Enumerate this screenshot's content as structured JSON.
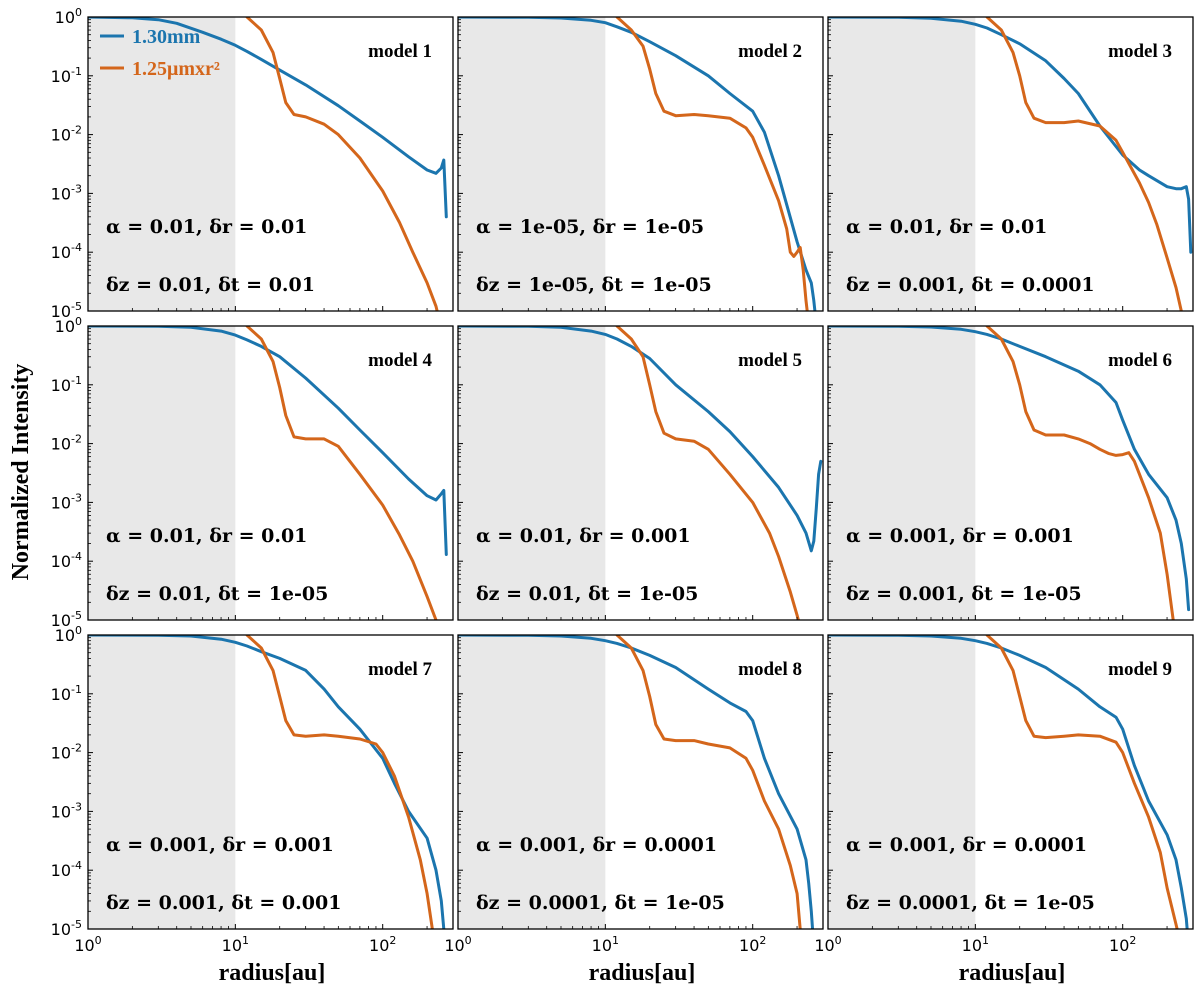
{
  "chart_data": {
    "type": "line",
    "layout": "3x3 grid of panels",
    "ylabel": "Normalized Intensity",
    "xlabel": "radius[au]",
    "xscale": "log",
    "yscale": "log",
    "xlim": [
      1,
      300
    ],
    "ylim": [
      1e-05,
      1
    ],
    "x_ticks": [
      "10^0",
      "10^1",
      "10^2"
    ],
    "y_ticks": [
      "10^0",
      "10^-1",
      "10^-2",
      "10^-3",
      "10^-4",
      "10^-5"
    ],
    "shaded_region": {
      "x_from": 1,
      "x_to": 10,
      "color": "#e8e8e8"
    },
    "legend": [
      {
        "label": "1.30mm",
        "color": "#1b75ae"
      },
      {
        "label": "1.25μmxr²",
        "color": "#d4661b"
      }
    ],
    "colors": {
      "mm": "#1b75ae",
      "um": "#d4661b"
    },
    "panels": [
      {
        "title": "model 1",
        "param_line1": "α = 0.01,  δr = 0.01",
        "param_line2": "δz = 0.01,  δt = 0.01",
        "series": [
          {
            "name": "1.30mm",
            "x": [
              1,
              2,
              3,
              4,
              6,
              8,
              10,
              12,
              15,
              20,
              30,
              50,
              70,
              100,
              150,
              200,
              230,
              250,
              260,
              270
            ],
            "y": [
              1,
              0.97,
              0.9,
              0.78,
              0.55,
              0.42,
              0.33,
              0.26,
              0.19,
              0.125,
              0.07,
              0.031,
              0.017,
              0.009,
              0.0042,
              0.0025,
              0.0022,
              0.0027,
              0.0037,
              0.0004
            ]
          },
          {
            "name": "1.25μmxr²",
            "x": [
              12,
              15,
              18,
              20,
              22,
              25,
              30,
              40,
              50,
              70,
              100,
              130,
              160,
              200,
              230,
              250
            ],
            "y": [
              1,
              0.6,
              0.25,
              0.09,
              0.035,
              0.022,
              0.02,
              0.015,
              0.01,
              0.004,
              0.0011,
              0.00032,
              0.0001,
              3e-05,
              1.2e-05,
              5e-06
            ]
          }
        ]
      },
      {
        "title": "model 2",
        "param_line1": "α = 1e-05,  δr = 1e-05",
        "param_line2": "δz = 1e-05,  δt = 1e-05",
        "series": [
          {
            "name": "1.30mm",
            "x": [
              1,
              3,
              5,
              8,
              10,
              12,
              15,
              20,
              30,
              50,
              70,
              100,
              120,
              150,
              200,
              230,
              250,
              260,
              270
            ],
            "y": [
              1,
              0.99,
              0.96,
              0.88,
              0.8,
              0.68,
              0.55,
              0.38,
              0.22,
              0.1,
              0.05,
              0.025,
              0.011,
              0.002,
              0.00015,
              5e-05,
              3e-05,
              1.5e-05,
              6e-06
            ]
          },
          {
            "name": "1.25μmxr²",
            "x": [
              12,
              15,
              18,
              20,
              22,
              25,
              30,
              40,
              50,
              70,
              90,
              100,
              120,
              150,
              170,
              180,
              190,
              200,
              210,
              220,
              230,
              240
            ],
            "y": [
              1,
              0.6,
              0.32,
              0.13,
              0.05,
              0.025,
              0.021,
              0.022,
              0.021,
              0.019,
              0.013,
              0.009,
              0.003,
              0.00075,
              0.00025,
              0.0001,
              8.5e-05,
              0.0001,
              0.00012,
              5e-05,
              1.5e-05,
              6e-06
            ]
          }
        ]
      },
      {
        "title": "model 3",
        "param_line1": "α = 0.01,  δr = 0.01",
        "param_line2": "δz = 0.001,  δt = 0.0001",
        "series": [
          {
            "name": "1.30mm",
            "x": [
              1,
              3,
              5,
              8,
              10,
              12,
              15,
              20,
              30,
              40,
              50,
              70,
              100,
              130,
              150,
              200,
              230,
              250,
              270,
              280,
              290
            ],
            "y": [
              1,
              0.99,
              0.95,
              0.85,
              0.75,
              0.65,
              0.5,
              0.35,
              0.18,
              0.09,
              0.05,
              0.014,
              0.0045,
              0.0025,
              0.002,
              0.0013,
              0.0012,
              0.0012,
              0.0013,
              0.0008,
              0.0001
            ]
          },
          {
            "name": "1.25μmxr²",
            "x": [
              12,
              15,
              18,
              20,
              22,
              25,
              30,
              40,
              50,
              70,
              90,
              100,
              130,
              150,
              170,
              200,
              230,
              250
            ],
            "y": [
              1,
              0.6,
              0.25,
              0.1,
              0.035,
              0.019,
              0.016,
              0.016,
              0.017,
              0.014,
              0.008,
              0.005,
              0.0015,
              0.0007,
              0.0003,
              8e-05,
              2.5e-05,
              1e-05
            ]
          }
        ]
      },
      {
        "title": "model 4",
        "param_line1": "α = 0.01,  δr = 0.01",
        "param_line2": "δz = 0.01,  δt = 1e-05",
        "series": [
          {
            "name": "1.30mm",
            "x": [
              1,
              3,
              5,
              8,
              10,
              12,
              15,
              20,
              30,
              50,
              70,
              100,
              150,
              200,
              230,
              250,
              260,
              270
            ],
            "y": [
              1,
              0.99,
              0.95,
              0.82,
              0.7,
              0.58,
              0.45,
              0.3,
              0.13,
              0.04,
              0.017,
              0.007,
              0.0025,
              0.0013,
              0.0011,
              0.0014,
              0.0016,
              0.00013
            ]
          },
          {
            "name": "1.25μmxr²",
            "x": [
              12,
              15,
              18,
              20,
              22,
              25,
              30,
              40,
              50,
              70,
              100,
              130,
              160,
              200,
              230,
              250
            ],
            "y": [
              1,
              0.6,
              0.25,
              0.09,
              0.03,
              0.013,
              0.012,
              0.012,
              0.009,
              0.003,
              0.0009,
              0.00028,
              0.0001,
              2.5e-05,
              1e-05,
              5e-06
            ]
          }
        ]
      },
      {
        "title": "model 5",
        "param_line1": "α = 0.01,  δr = 0.001",
        "param_line2": "δz = 0.01,  δt = 1e-05",
        "series": [
          {
            "name": "1.30mm",
            "x": [
              1,
              3,
              5,
              8,
              10,
              12,
              15,
              20,
              30,
              50,
              70,
              100,
              150,
              200,
              230,
              250,
              260,
              270,
              280,
              290
            ],
            "y": [
              1,
              0.99,
              0.95,
              0.82,
              0.72,
              0.6,
              0.45,
              0.28,
              0.1,
              0.035,
              0.016,
              0.006,
              0.0018,
              0.0006,
              0.0003,
              0.00015,
              0.00022,
              0.0008,
              0.003,
              0.005
            ]
          },
          {
            "name": "1.25μmxr²",
            "x": [
              12,
              15,
              18,
              20,
              22,
              25,
              30,
              40,
              50,
              70,
              100,
              130,
              150,
              180,
              200,
              220
            ],
            "y": [
              1,
              0.6,
              0.3,
              0.1,
              0.035,
              0.015,
              0.012,
              0.011,
              0.008,
              0.003,
              0.001,
              0.0003,
              0.00012,
              3e-05,
              1.2e-05,
              5e-06
            ]
          }
        ]
      },
      {
        "title": "model 6",
        "param_line1": "α = 0.001,  δr = 0.001",
        "param_line2": "δz = 0.001,  δt = 1e-05",
        "series": [
          {
            "name": "1.30mm",
            "x": [
              1,
              3,
              5,
              8,
              10,
              12,
              15,
              20,
              30,
              50,
              70,
              90,
              100,
              120,
              150,
              200,
              230,
              250,
              270,
              280
            ],
            "y": [
              1,
              0.99,
              0.96,
              0.88,
              0.8,
              0.72,
              0.6,
              0.45,
              0.3,
              0.17,
              0.1,
              0.05,
              0.025,
              0.008,
              0.003,
              0.0012,
              0.0005,
              0.0002,
              5e-05,
              1.5e-05
            ]
          },
          {
            "name": "1.25μmxr²",
            "x": [
              12,
              15,
              18,
              20,
              22,
              25,
              30,
              40,
              50,
              60,
              70,
              80,
              90,
              100,
              110,
              120,
              130,
              150,
              180,
              200,
              220
            ],
            "y": [
              1,
              0.6,
              0.25,
              0.1,
              0.035,
              0.017,
              0.014,
              0.014,
              0.012,
              0.01,
              0.008,
              0.0068,
              0.0063,
              0.0065,
              0.007,
              0.005,
              0.003,
              0.0012,
              0.0003,
              6e-05,
              1e-05
            ]
          }
        ]
      },
      {
        "title": "model 7",
        "param_line1": "α = 0.001,  δr = 0.001",
        "param_line2": "δz = 0.001,  δt = 0.001",
        "series": [
          {
            "name": "1.30mm",
            "x": [
              1,
              3,
              5,
              8,
              10,
              12,
              15,
              20,
              30,
              40,
              50,
              70,
              100,
              120,
              150,
              200,
              230,
              250,
              260,
              270
            ],
            "y": [
              1,
              0.99,
              0.96,
              0.85,
              0.75,
              0.65,
              0.52,
              0.4,
              0.25,
              0.12,
              0.06,
              0.025,
              0.008,
              0.003,
              0.001,
              0.00035,
              0.0001,
              3e-05,
              1e-05,
              5e-06
            ]
          },
          {
            "name": "1.25μmxr²",
            "x": [
              12,
              15,
              18,
              20,
              22,
              25,
              30,
              40,
              50,
              70,
              90,
              100,
              120,
              150,
              180,
              200,
              220
            ],
            "y": [
              1,
              0.6,
              0.25,
              0.09,
              0.035,
              0.02,
              0.019,
              0.02,
              0.019,
              0.017,
              0.014,
              0.01,
              0.004,
              0.0008,
              0.00015,
              4e-05,
              8e-06
            ]
          }
        ]
      },
      {
        "title": "model 8",
        "param_line1": "α = 0.001,  δr = 0.0001",
        "param_line2": "δz = 0.0001,  δt = 1e-05",
        "series": [
          {
            "name": "1.30mm",
            "x": [
              1,
              3,
              5,
              8,
              10,
              12,
              15,
              20,
              30,
              50,
              70,
              90,
              100,
              120,
              150,
              200,
              230,
              240,
              250,
              260
            ],
            "y": [
              1,
              0.99,
              0.96,
              0.88,
              0.8,
              0.72,
              0.6,
              0.45,
              0.28,
              0.12,
              0.07,
              0.05,
              0.035,
              0.008,
              0.002,
              0.0005,
              0.00015,
              6e-05,
              2e-05,
              5e-06
            ]
          },
          {
            "name": "1.25μmxr²",
            "x": [
              12,
              15,
              18,
              20,
              22,
              25,
              30,
              40,
              50,
              70,
              90,
              100,
              120,
              150,
              180,
              200,
              210,
              220
            ],
            "y": [
              1,
              0.6,
              0.25,
              0.09,
              0.03,
              0.017,
              0.016,
              0.016,
              0.014,
              0.012,
              0.008,
              0.005,
              0.0015,
              0.0005,
              0.00012,
              4e-05,
              1e-05,
              5e-06
            ]
          }
        ]
      },
      {
        "title": "model 9",
        "param_line1": "α = 0.001,  δr = 0.0001",
        "param_line2": "δz = 0.0001,  δt = 1e-05",
        "series": [
          {
            "name": "1.30mm",
            "x": [
              1,
              3,
              5,
              8,
              10,
              12,
              15,
              20,
              30,
              50,
              70,
              90,
              100,
              120,
              150,
              200,
              230,
              250,
              270,
              280
            ],
            "y": [
              1,
              0.99,
              0.96,
              0.88,
              0.8,
              0.72,
              0.6,
              0.45,
              0.28,
              0.12,
              0.06,
              0.04,
              0.025,
              0.006,
              0.0015,
              0.0004,
              0.00015,
              5e-05,
              1.5e-05,
              5e-06
            ]
          },
          {
            "name": "1.25μmxr²",
            "x": [
              12,
              15,
              18,
              20,
              22,
              25,
              30,
              40,
              50,
              70,
              90,
              100,
              120,
              150,
              180,
              200,
              230,
              250
            ],
            "y": [
              1,
              0.6,
              0.25,
              0.09,
              0.035,
              0.019,
              0.018,
              0.019,
              0.02,
              0.019,
              0.015,
              0.01,
              0.003,
              0.0008,
              0.0002,
              5e-05,
              1.2e-05,
              5e-06
            ]
          }
        ]
      }
    ]
  }
}
